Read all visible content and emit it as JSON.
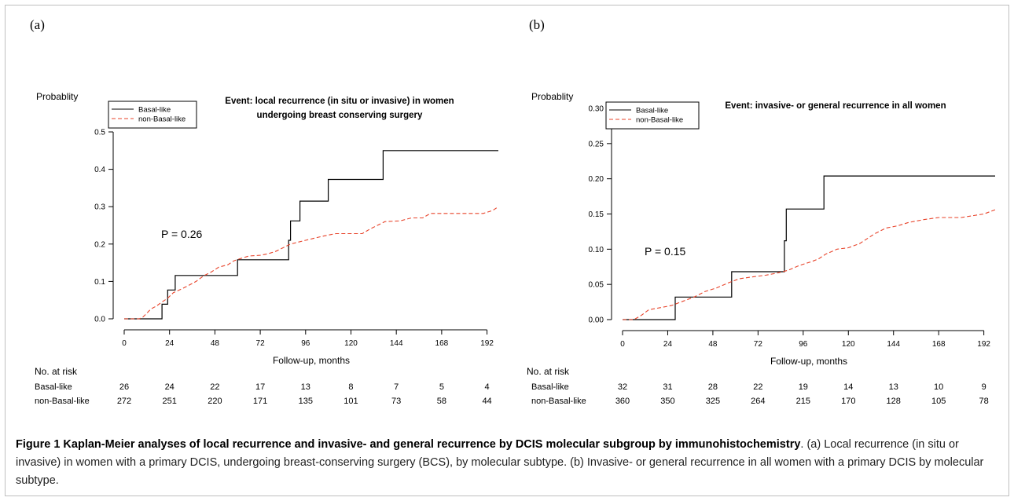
{
  "panels": [
    {
      "letter": "(a)"
    },
    {
      "letter": "(b)"
    }
  ],
  "chart_data": [
    {
      "type": "line",
      "title": [
        "Event: local recurrence (in situ or invasive) in women",
        "undergoing breast conserving surgery"
      ],
      "ylabel": "Probablity",
      "xlabel": "Follow-up, months",
      "xlim": [
        0,
        198
      ],
      "ylim": [
        0,
        0.5
      ],
      "xticks": [
        0,
        24,
        48,
        72,
        96,
        120,
        144,
        168,
        192
      ],
      "yticks": [
        0.0,
        0.1,
        0.2,
        0.3,
        0.4,
        0.5
      ],
      "ytick_labels": [
        "0.0",
        "0.1",
        "0.2",
        "0.3",
        "0.4",
        "0.5"
      ],
      "legend": {
        "position": "top-left"
      },
      "annotation": "P = 0.26",
      "series": [
        {
          "name": "Basal-like",
          "color": "#000000",
          "dash": "solid",
          "points": [
            [
              0,
              0
            ],
            [
              20,
              0
            ],
            [
              20,
              0.039
            ],
            [
              23,
              0.039
            ],
            [
              23,
              0.077
            ],
            [
              27,
              0.077
            ],
            [
              27,
              0.116
            ],
            [
              60,
              0.116
            ],
            [
              60,
              0.158
            ],
            [
              87,
              0.158
            ],
            [
              87,
              0.21
            ],
            [
              88,
              0.21
            ],
            [
              88,
              0.262
            ],
            [
              93,
              0.262
            ],
            [
              93,
              0.315
            ],
            [
              108,
              0.315
            ],
            [
              108,
              0.373
            ],
            [
              137,
              0.373
            ],
            [
              137,
              0.45
            ],
            [
              198,
              0.45
            ]
          ]
        },
        {
          "name": "non-Basal-like",
          "color": "#e8432a",
          "dash": "dashed",
          "points": [
            [
              0,
              0
            ],
            [
              8,
              0
            ],
            [
              10,
              0.005
            ],
            [
              12,
              0.015
            ],
            [
              14,
              0.026
            ],
            [
              17,
              0.034
            ],
            [
              20,
              0.045
            ],
            [
              23,
              0.055
            ],
            [
              26,
              0.07
            ],
            [
              30,
              0.079
            ],
            [
              34,
              0.089
            ],
            [
              38,
              0.1
            ],
            [
              42,
              0.115
            ],
            [
              46,
              0.125
            ],
            [
              50,
              0.138
            ],
            [
              55,
              0.145
            ],
            [
              58,
              0.155
            ],
            [
              62,
              0.162
            ],
            [
              66,
              0.168
            ],
            [
              72,
              0.17
            ],
            [
              76,
              0.174
            ],
            [
              80,
              0.18
            ],
            [
              84,
              0.19
            ],
            [
              88,
              0.2
            ],
            [
              92,
              0.205
            ],
            [
              96,
              0.21
            ],
            [
              100,
              0.215
            ],
            [
              106,
              0.222
            ],
            [
              112,
              0.228
            ],
            [
              118,
              0.228
            ],
            [
              126,
              0.228
            ],
            [
              130,
              0.24
            ],
            [
              134,
              0.25
            ],
            [
              138,
              0.26
            ],
            [
              146,
              0.262
            ],
            [
              152,
              0.27
            ],
            [
              158,
              0.27
            ],
            [
              162,
              0.282
            ],
            [
              176,
              0.282
            ],
            [
              190,
              0.282
            ],
            [
              195,
              0.29
            ],
            [
              198,
              0.3
            ]
          ]
        }
      ],
      "at_risk": {
        "header": "No. at risk",
        "rows": [
          {
            "label": "Basal-like",
            "values": [
              "26",
              "24",
              "22",
              "17",
              "13",
              "8",
              "7",
              "5",
              "4"
            ]
          },
          {
            "label": "non-Basal-like",
            "values": [
              "272",
              "251",
              "220",
              "171",
              "135",
              "101",
              "73",
              "58",
              "44"
            ]
          }
        ]
      }
    },
    {
      "type": "line",
      "title": [
        "Event: invasive- or general recurrence in all women"
      ],
      "ylabel": "Probablity",
      "xlabel": "Follow-up, months",
      "xlim": [
        0,
        198
      ],
      "ylim": [
        0,
        0.3
      ],
      "xticks": [
        0,
        24,
        48,
        72,
        96,
        120,
        144,
        168,
        192
      ],
      "yticks": [
        0.0,
        0.05,
        0.1,
        0.15,
        0.2,
        0.25,
        0.3
      ],
      "ytick_labels": [
        "0.00",
        "0.05",
        "0.10",
        "0.15",
        "0.20",
        "0.25",
        "0.30"
      ],
      "legend": {
        "position": "top-left"
      },
      "annotation": "P = 0.15",
      "series": [
        {
          "name": "Basal-like",
          "color": "#000000",
          "dash": "solid",
          "points": [
            [
              0,
              0
            ],
            [
              28,
              0
            ],
            [
              28,
              0.032
            ],
            [
              58,
              0.032
            ],
            [
              58,
              0.068
            ],
            [
              86,
              0.068
            ],
            [
              86,
              0.112
            ],
            [
              87,
              0.112
            ],
            [
              87,
              0.157
            ],
            [
              107,
              0.157
            ],
            [
              107,
              0.204
            ],
            [
              198,
              0.204
            ]
          ]
        },
        {
          "name": "non-Basal-like",
          "color": "#e8432a",
          "dash": "dashed",
          "points": [
            [
              0,
              0
            ],
            [
              6,
              0
            ],
            [
              10,
              0.006
            ],
            [
              14,
              0.014
            ],
            [
              20,
              0.017
            ],
            [
              26,
              0.02
            ],
            [
              32,
              0.026
            ],
            [
              38,
              0.032
            ],
            [
              44,
              0.04
            ],
            [
              50,
              0.045
            ],
            [
              56,
              0.052
            ],
            [
              62,
              0.058
            ],
            [
              70,
              0.061
            ],
            [
              76,
              0.063
            ],
            [
              82,
              0.066
            ],
            [
              88,
              0.07
            ],
            [
              94,
              0.077
            ],
            [
              100,
              0.082
            ],
            [
              104,
              0.086
            ],
            [
              108,
              0.093
            ],
            [
              114,
              0.1
            ],
            [
              120,
              0.102
            ],
            [
              126,
              0.108
            ],
            [
              130,
              0.115
            ],
            [
              134,
              0.122
            ],
            [
              140,
              0.13
            ],
            [
              146,
              0.133
            ],
            [
              152,
              0.138
            ],
            [
              160,
              0.142
            ],
            [
              168,
              0.145
            ],
            [
              180,
              0.145
            ],
            [
              192,
              0.15
            ],
            [
              198,
              0.156
            ]
          ]
        }
      ],
      "at_risk": {
        "header": "No. at risk",
        "rows": [
          {
            "label": "Basal-like",
            "values": [
              "32",
              "31",
              "28",
              "22",
              "19",
              "14",
              "13",
              "10",
              "9"
            ]
          },
          {
            "label": "non-Basal-like",
            "values": [
              "360",
              "350",
              "325",
              "264",
              "215",
              "170",
              "128",
              "105",
              "78"
            ]
          }
        ]
      }
    }
  ],
  "caption": {
    "title": "Figure 1 Kaplan-Meier analyses of local recurrence and invasive- and general recurrence by DCIS molecular subgroup by immunohistochemistry",
    "body": ". (a) Local recurrence (in situ or invasive) in women with a primary DCIS, undergoing breast-conserving surgery (BCS), by molecular subtype. (b) Invasive- or general recurrence in all women with a primary DCIS by molecular subtype."
  }
}
